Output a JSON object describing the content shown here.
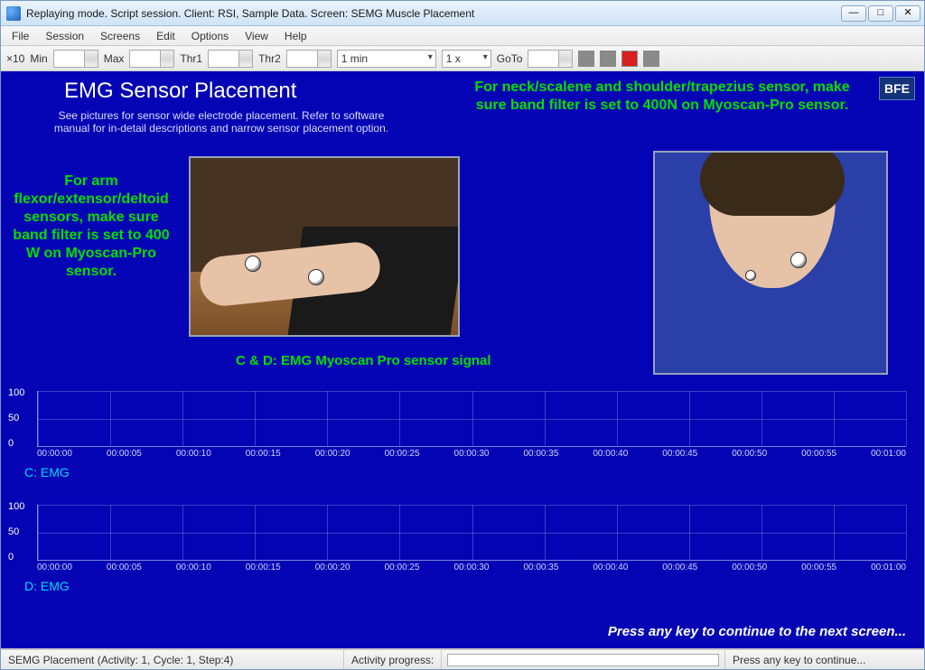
{
  "window": {
    "title": "Replaying mode. Script session. Client: RSI, Sample Data. Screen: SEMG Muscle Placement",
    "buttons": {
      "min": "—",
      "max": "□",
      "close": "✕"
    }
  },
  "menu": [
    "File",
    "Session",
    "Screens",
    "Edit",
    "Options",
    "View",
    "Help"
  ],
  "toolbar": {
    "x10": "×10",
    "labels": {
      "min": "Min",
      "max": "Max",
      "thr1": "Thr1",
      "thr2": "Thr2",
      "goto": "GoTo"
    },
    "values": {
      "min": "",
      "max": "",
      "thr1": "",
      "thr2": "",
      "goto": ""
    },
    "time_range": "1 min",
    "speed": "1 x",
    "rec_btn_colors": [
      "#8a8a8a",
      "#8a8a8a",
      "#d81f1f",
      "#8a8a8a"
    ]
  },
  "header": {
    "title": "EMG Sensor Placement",
    "subtitle": "See pictures for sensor wide electrode placement. Refer to software manual for in-detail descriptions and narrow sensor placement option.",
    "right_note": "For neck/scalene and shoulder/trapezius sensor, make sure band filter is set to 400N on Myoscan-Pro sensor.",
    "left_note": "For arm flexor/extensor/deltoid sensors, make sure band filter is set to 400 W on Myoscan-Pro sensor.",
    "caption": "C & D: EMG Myoscan Pro sensor signal",
    "logo": "BFE"
  },
  "charts": {
    "ylim": [
      0,
      100
    ],
    "yticks": [
      0,
      50,
      100
    ],
    "x_labels": [
      "00:00:00",
      "00:00:05",
      "00:00:10",
      "00:00:15",
      "00:00:20",
      "00:00:25",
      "00:00:30",
      "00:00:35",
      "00:00:40",
      "00:00:45",
      "00:00:50",
      "00:00:55",
      "00:01:00"
    ],
    "list": [
      {
        "id": "c",
        "name": "C: EMG"
      },
      {
        "id": "d",
        "name": "D: EMG"
      }
    ],
    "colors": {
      "bg": "#0404b4",
      "grid": "rgba(160,170,230,0.35)",
      "axis": "#7a86d8",
      "channel_label": "#00d8f0",
      "tick_text": "#cfd4ff"
    }
  },
  "footer": {
    "press_key": "Press any key to continue to the next screen...",
    "status_left": "SEMG Placement (Activity: 1, Cycle: 1, Step:4)",
    "status_mid": "Activity progress:",
    "status_right": "Press any key to continue..."
  },
  "colors": {
    "content_bg": "#0404b4",
    "accent_green": "#00e000",
    "subtitle": "#dcdcff"
  }
}
